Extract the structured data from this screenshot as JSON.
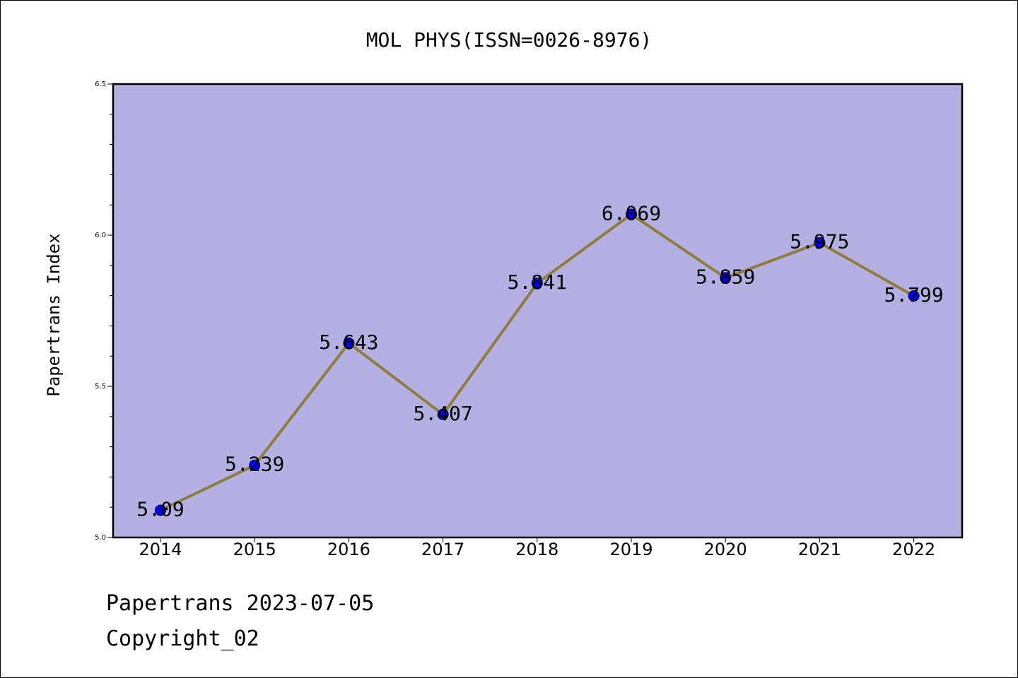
{
  "chart_data": {
    "type": "line",
    "title": "MOL PHYS(ISSN=0026-8976)",
    "xlabel": "",
    "ylabel": "Papertrans Index",
    "x": [
      "2014",
      "2015",
      "2016",
      "2017",
      "2018",
      "2019",
      "2020",
      "2021",
      "2022"
    ],
    "series": [
      {
        "values": [
          5.09,
          5.239,
          5.643,
          5.407,
          5.841,
          6.069,
          5.859,
          5.975,
          5.799
        ],
        "labels": [
          "5.09",
          "5.239",
          "5.643",
          "5.407",
          "5.841",
          "6.069",
          "5.859",
          "5.975",
          "5.799"
        ]
      }
    ],
    "ylim": [
      5.0,
      6.5
    ],
    "yticks": [
      "5.0",
      "5.5",
      "6.0",
      "6.5"
    ],
    "grid": false,
    "colors": {
      "plot_background": "#b5b0e3",
      "line": "#8e7d3e",
      "marker": "#0000ff"
    }
  },
  "footer": {
    "date_line": "Papertrans 2023-07-05",
    "copyright": "Copyright_02"
  }
}
